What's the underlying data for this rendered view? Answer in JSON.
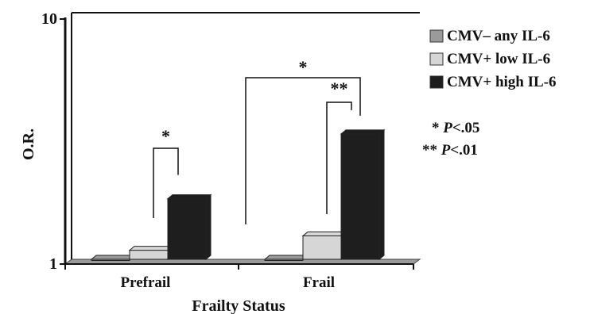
{
  "chart_data": {
    "type": "bar",
    "xlabel": "Frailty Status",
    "ylabel": "O.R.",
    "yscale": "log",
    "ylim": [
      1,
      10
    ],
    "yticks": [
      {
        "value": 1,
        "label": "1"
      },
      {
        "value": 10,
        "label": "10"
      }
    ],
    "categories": [
      "Prefrail",
      "Frail"
    ],
    "series": [
      {
        "name": "CMV– any IL-6",
        "color": "#9a9a9a",
        "values": [
          1.0,
          1.0
        ]
      },
      {
        "name": "CMV+ low IL-6",
        "color": "#d6d6d6",
        "values": [
          1.09,
          1.25
        ]
      },
      {
        "name": "CMV+ high IL-6",
        "color": "#1e1e1e",
        "values": [
          1.78,
          3.3
        ]
      }
    ],
    "legend_position": "right",
    "significance_brackets": [
      {
        "category": "Prefrail",
        "from_series": 1,
        "to_series": 2,
        "label": "*"
      },
      {
        "category": "Frail",
        "from_series": 1,
        "to_series": 2,
        "label": "**"
      },
      {
        "category": "Frail",
        "from_series": 0,
        "to_series": 2,
        "label": "*"
      }
    ],
    "notes": [
      {
        "prefix": "* ",
        "italic": "P",
        "rest": "<.05"
      },
      {
        "prefix": "** ",
        "italic": "P",
        "rest": "<.01"
      }
    ]
  }
}
